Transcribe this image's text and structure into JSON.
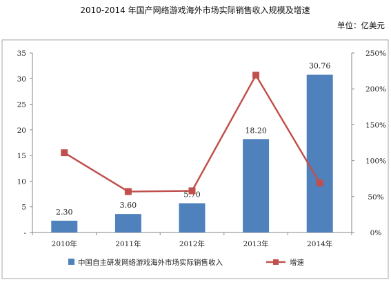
{
  "header": {
    "title": "2010-2014 年国产网络游戏海外市场实际销售收入规模及增速",
    "unit": "单位：亿美元"
  },
  "colors": {
    "bar": "#4f81bd",
    "line": "#c0504d",
    "border": "#a6a6a6"
  },
  "chart_data": {
    "type": "bar",
    "categories": [
      "2010年",
      "2011年",
      "2012年",
      "2013年",
      "2014年"
    ],
    "series": [
      {
        "name": "中国自主研发网络游戏海外市场实际销售收入",
        "type": "bar",
        "axis": "left",
        "values": [
          2.3,
          3.6,
          5.7,
          18.2,
          30.76
        ],
        "labels": [
          "2.30",
          "3.60",
          "5.70",
          "18.20",
          "30.76"
        ]
      },
      {
        "name": "增速",
        "type": "line",
        "axis": "right",
        "values": [
          111,
          57,
          58,
          219,
          69
        ]
      }
    ],
    "ylim": [
      0,
      35
    ],
    "y_ticks": [
      "-",
      "5",
      "10",
      "15",
      "20",
      "25",
      "30",
      "35"
    ],
    "y2lim": [
      0,
      250
    ],
    "y2_ticks": [
      "0%",
      "50%",
      "100%",
      "150%",
      "200%",
      "250%"
    ],
    "grid": false,
    "legend": "bottom"
  }
}
